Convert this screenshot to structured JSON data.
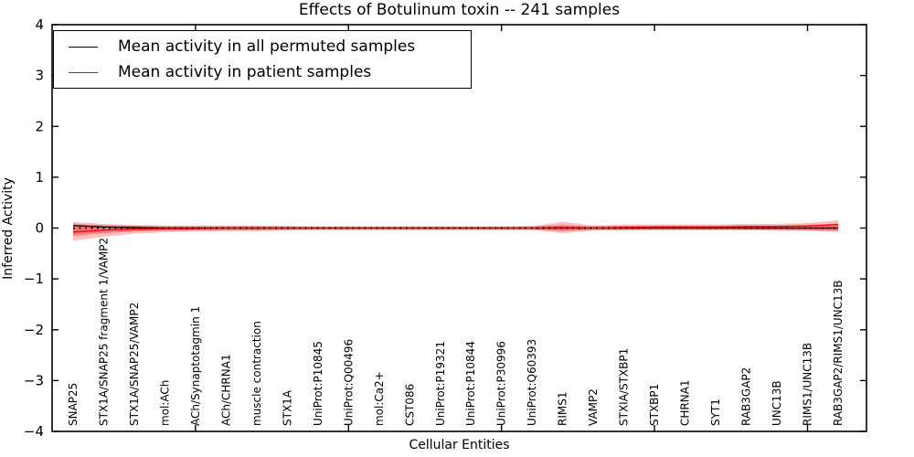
{
  "figure": {
    "title": "Effects of Botulinum toxin -- 241 samples",
    "xlabel": "Cellular Entities",
    "ylabel": "Inferred Activity"
  },
  "legend": {
    "items": [
      {
        "label": "Mean activity in all permuted samples",
        "color": "#000000"
      },
      {
        "label": "Mean activity in patient samples",
        "color": "#ff0000"
      }
    ]
  },
  "chart_data": {
    "type": "line",
    "title": "Effects of Botulinum toxin -- 241 samples",
    "xlabel": "Cellular Entities",
    "ylabel": "Inferred Activity",
    "ylim": [
      -4,
      4
    ],
    "grid": false,
    "legend_position": "upper left",
    "x_tick_label_rotation": 90,
    "x_major_tick_every": 5,
    "yticks": [
      {
        "value": 4,
        "label": "4"
      },
      {
        "value": 3,
        "label": "3"
      },
      {
        "value": 2,
        "label": "2"
      },
      {
        "value": 1,
        "label": "1"
      },
      {
        "value": 0,
        "label": "0"
      },
      {
        "value": -1,
        "label": "−1"
      },
      {
        "value": -2,
        "label": "−2"
      },
      {
        "value": -3,
        "label": "−3"
      },
      {
        "value": -4,
        "label": "−4"
      }
    ],
    "categories": [
      "SNAP25",
      "STX1A/SNAP25 fragment 1/VAMP2",
      "STX1A/SNAP25/VAMP2",
      "mol:ACh",
      "ACh/Synaptotagmin 1",
      "ACh/CHRNA1",
      "muscle contraction",
      "STX1A",
      "UniProt:P10845",
      "UniProt:Q00496",
      "mol:Ca2+",
      "CST086",
      "UniProt:P19321",
      "UniProt:P10844",
      "UniProt:P30996",
      "UniProt:Q60393",
      "RIMS1",
      "VAMP2",
      "STXIA/STXBP1",
      "STXBP1",
      "CHRNA1",
      "SYT1",
      "RAB3GAP2",
      "UNC13B",
      "RIMS1/UNC13B",
      "RAB3GAP2/RIMS1/UNC13B"
    ],
    "series": [
      {
        "name": "Mean activity in all permuted samples",
        "color": "#000000",
        "style": "solid",
        "values": [
          0.05,
          0.02,
          0.01,
          0,
          0,
          0,
          0,
          0,
          0,
          0,
          0,
          0,
          0,
          0,
          0,
          0,
          0,
          0,
          0,
          0,
          0,
          0,
          0,
          0,
          0,
          0
        ]
      },
      {
        "name": "Mean activity in patient samples",
        "color": "#ff0000",
        "style": "solid",
        "values": [
          -0.08,
          -0.04,
          -0.02,
          -0.01,
          -0.01,
          0,
          0,
          0,
          0,
          0,
          0,
          0,
          0,
          0,
          0,
          0,
          0.01,
          0,
          0.01,
          0.02,
          0.02,
          0.02,
          0.03,
          0.03,
          0.04,
          0.07
        ]
      },
      {
        "name": "zero-reference",
        "color": "#000000",
        "style": "dotted",
        "values": [
          0,
          0,
          0,
          0,
          0,
          0,
          0,
          0,
          0,
          0,
          0,
          0,
          0,
          0,
          0,
          0,
          0,
          0,
          0,
          0,
          0,
          0,
          0,
          0,
          0,
          0
        ]
      }
    ],
    "bands": [
      {
        "name": "permuted-samples-band",
        "color": "#000000",
        "opacity": 0.12,
        "upper": [
          0.09,
          0.06,
          0.05,
          0.04,
          0.04,
          0.04,
          0.04,
          0.04,
          0.04,
          0.04,
          0.04,
          0.04,
          0.04,
          0.04,
          0.04,
          0.04,
          0.05,
          0.04,
          0.05,
          0.05,
          0.05,
          0.05,
          0.05,
          0.05,
          0.06,
          0.07
        ],
        "lower": [
          -0.12,
          -0.08,
          -0.06,
          -0.05,
          -0.04,
          -0.04,
          -0.04,
          -0.04,
          -0.04,
          -0.04,
          -0.04,
          -0.04,
          -0.04,
          -0.04,
          -0.04,
          -0.04,
          -0.05,
          -0.04,
          -0.05,
          -0.05,
          -0.05,
          -0.05,
          -0.05,
          -0.05,
          -0.06,
          -0.07
        ]
      },
      {
        "name": "patient-samples-band-outer",
        "color": "#ff0000",
        "opacity": 0.25,
        "upper": [
          0.12,
          0.08,
          0.06,
          0.05,
          0.05,
          0.05,
          0.05,
          0.04,
          0.03,
          0.03,
          0.03,
          0.03,
          0.03,
          0.03,
          0.03,
          0.04,
          0.12,
          0.05,
          0.07,
          0.07,
          0.07,
          0.07,
          0.08,
          0.08,
          0.1,
          0.15
        ],
        "lower": [
          -0.25,
          -0.17,
          -0.11,
          -0.08,
          -0.07,
          -0.06,
          -0.06,
          -0.05,
          -0.04,
          -0.04,
          -0.04,
          -0.04,
          -0.04,
          -0.04,
          -0.04,
          -0.04,
          -0.1,
          -0.05,
          -0.05,
          -0.04,
          -0.04,
          -0.04,
          -0.04,
          -0.05,
          -0.05,
          -0.07
        ]
      },
      {
        "name": "patient-samples-band-inner",
        "color": "#ff0000",
        "opacity": 0.3,
        "upper": [
          0.07,
          0.05,
          0.04,
          0.03,
          0.03,
          0.03,
          0.03,
          0.02,
          0.02,
          0.02,
          0.02,
          0.02,
          0.02,
          0.02,
          0.02,
          0.02,
          0.06,
          0.03,
          0.04,
          0.04,
          0.04,
          0.04,
          0.05,
          0.05,
          0.06,
          0.09
        ],
        "lower": [
          -0.16,
          -0.1,
          -0.07,
          -0.05,
          -0.04,
          -0.04,
          -0.04,
          -0.03,
          -0.02,
          -0.02,
          -0.02,
          -0.02,
          -0.02,
          -0.02,
          -0.02,
          -0.02,
          -0.06,
          -0.03,
          -0.03,
          -0.02,
          -0.02,
          -0.02,
          -0.03,
          -0.03,
          -0.04,
          -0.05
        ]
      }
    ]
  }
}
